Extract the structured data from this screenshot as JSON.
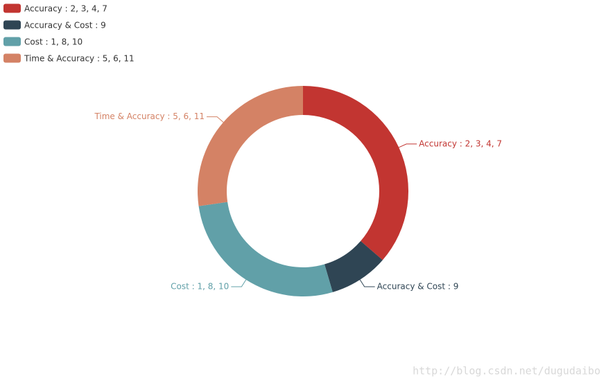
{
  "chart_data": {
    "type": "pie",
    "categories": [
      "Accuracy : 2, 3, 4, 7",
      "Accuracy & Cost : 9",
      "Cost : 1, 8, 10",
      "Time & Accuracy : 5, 6, 11"
    ],
    "values": [
      4,
      1,
      3,
      3
    ],
    "colors": [
      "#c23531",
      "#2f4554",
      "#61a0a8",
      "#d48265"
    ],
    "legend": "top-left",
    "watermark": "http://blog.csdn.net/dugudaibo"
  }
}
